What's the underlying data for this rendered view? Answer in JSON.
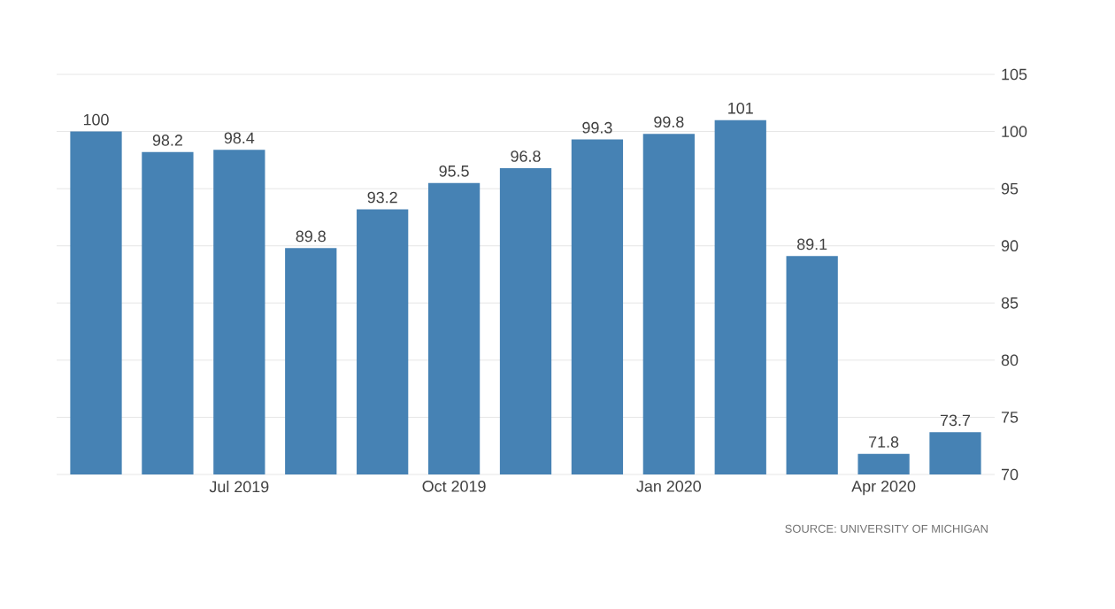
{
  "chart_data": {
    "type": "bar",
    "categories": [
      null,
      null,
      "Jul 2019",
      null,
      null,
      "Oct 2019",
      null,
      null,
      "Jan 2020",
      null,
      null,
      "Apr 2020",
      null
    ],
    "values": [
      100,
      98.2,
      98.4,
      89.8,
      93.2,
      95.5,
      96.8,
      99.3,
      99.8,
      101,
      89.1,
      71.8,
      73.7
    ],
    "value_labels": [
      "100",
      "98.2",
      "98.4",
      "89.8",
      "93.2",
      "95.5",
      "96.8",
      "99.3",
      "99.8",
      "101",
      "89.1",
      "71.8",
      "73.7"
    ],
    "color": "#4682b4",
    "ylim": [
      70,
      105
    ],
    "yticks": [
      70,
      75,
      80,
      85,
      90,
      95,
      100,
      105
    ],
    "grid": "y",
    "annotations": [
      "SOURCE: UNIVERSITY OF MICHIGAN"
    ]
  }
}
